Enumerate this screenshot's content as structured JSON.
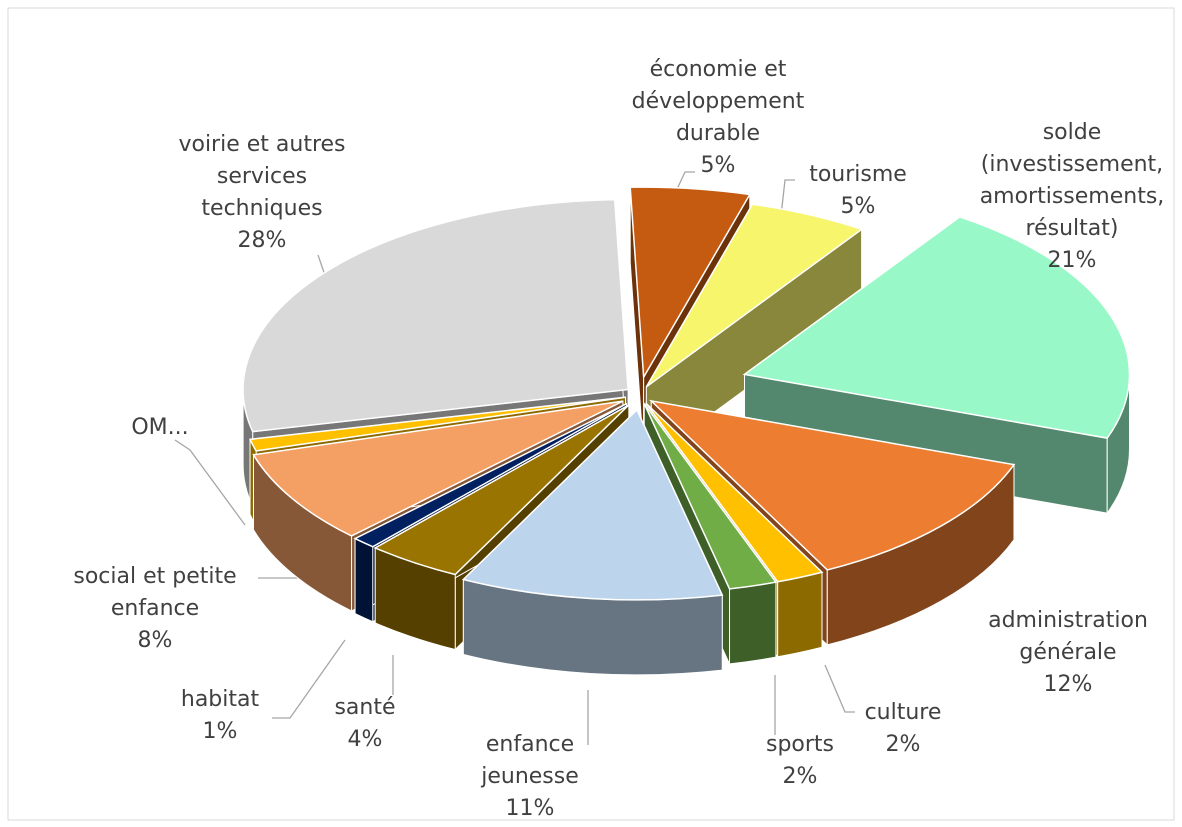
{
  "chart_data": {
    "type": "pie3d",
    "categories": [
      "économie et développement durable",
      "tourisme",
      "solde (investissement, amortissements, résultat)",
      "administration générale",
      "culture",
      "sports",
      "enfance jeunesse",
      "santé",
      "habitat",
      "social et petite enfance",
      "OM...",
      "voirie et autres services techniques"
    ],
    "values": [
      5,
      5,
      21,
      12,
      2,
      2,
      11,
      4,
      1,
      8,
      1,
      28
    ],
    "value_labels": [
      "5%",
      "5%",
      "21%",
      "12%",
      "2%",
      "2%",
      "11%",
      "4%",
      "1%",
      "8%",
      null,
      "28%"
    ],
    "colors": [
      "#c55a11",
      "#f7f56c",
      "#98f8c8",
      "#ed7d31",
      "#ffc000",
      "#70ad47",
      "#bcd4ec",
      "#9a7400",
      "#002060",
      "#f4a064",
      "#ffc000",
      "#d9d9d9"
    ]
  }
}
